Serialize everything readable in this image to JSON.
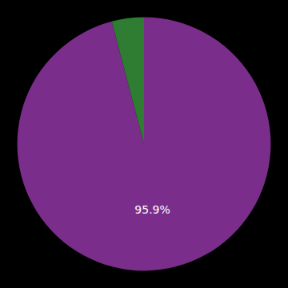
{
  "chart_data": {
    "type": "pie",
    "values": [
      95.9,
      4.1
    ],
    "value_labels": [
      "95.9%",
      null
    ],
    "colors": [
      "#7B2D8B",
      "#2E7D32"
    ]
  }
}
